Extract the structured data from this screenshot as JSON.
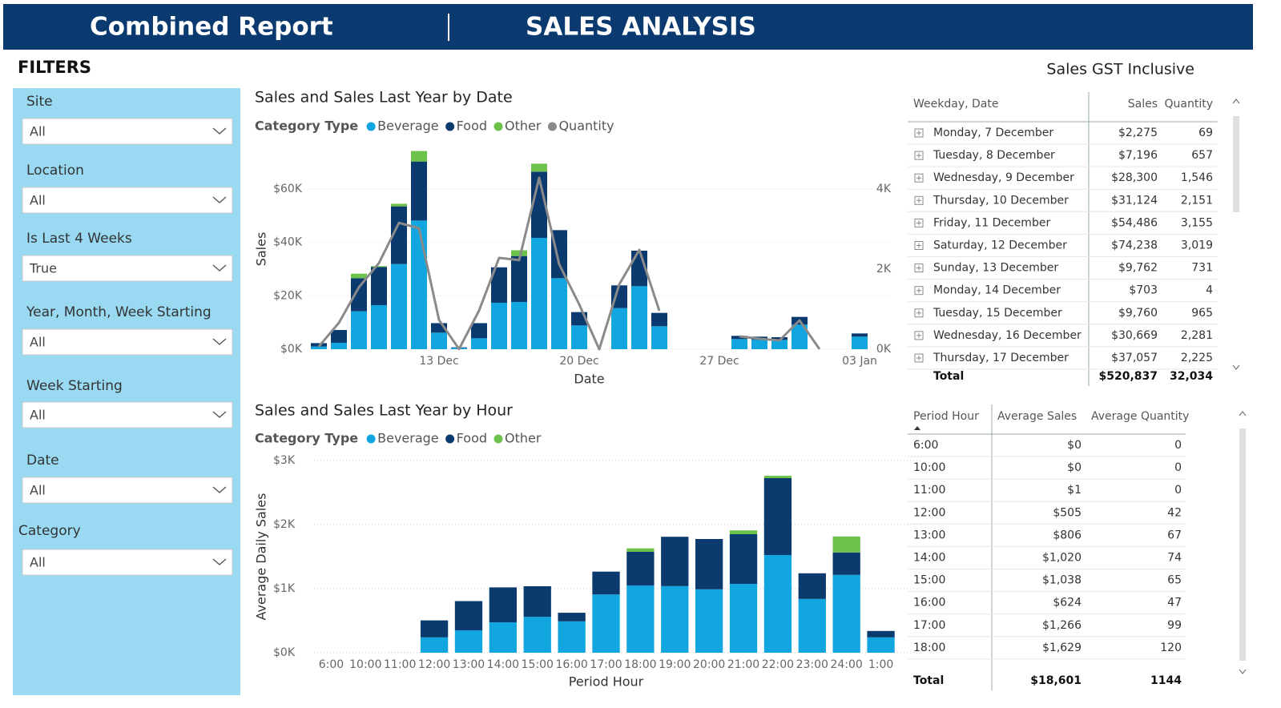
{
  "header": {
    "title": "Combined Report",
    "page": "SALES ANALYSIS"
  },
  "filters": {
    "title": "FILTERS",
    "items": [
      {
        "label": "Site",
        "value": "All"
      },
      {
        "label": "Location",
        "value": "All"
      },
      {
        "label": "Is Last 4 Weeks",
        "value": "True"
      },
      {
        "label": "Year, Month, Week Starting",
        "value": "All"
      },
      {
        "label": "Week Starting",
        "value": "All"
      },
      {
        "label": "Date",
        "value": "All"
      },
      {
        "label": "Category",
        "value": "All"
      }
    ]
  },
  "note": "Sales GST Inclusive",
  "chart_data": [
    {
      "type": "bar",
      "title": "Sales and Sales Last Year by Date",
      "legend_title": "Category Type",
      "x_label": "Date",
      "y_label": "Sales",
      "categories": [
        null,
        null,
        null,
        null,
        null,
        null,
        "13 Dec",
        null,
        null,
        null,
        null,
        null,
        null,
        "20 Dec",
        null,
        null,
        null,
        null,
        null,
        null,
        "27 Dec",
        null,
        null,
        null,
        null,
        null,
        null,
        "03 Jan"
      ],
      "series": [
        {
          "name": "Beverage",
          "color": "#12a6e0",
          "values": [
            1000,
            2400,
            14200,
            16500,
            31900,
            48200,
            6200,
            500,
            4100,
            17400,
            17700,
            41700,
            26600,
            8900,
            null,
            15400,
            23600,
            8600,
            null,
            null,
            null,
            3800,
            3500,
            3500,
            9200,
            null,
            null,
            4700
          ]
        },
        {
          "name": "Food",
          "color": "#0b3a6e",
          "values": [
            1275,
            4796,
            12400,
            14300,
            21600,
            22100,
            3562,
            203,
            5660,
            13269,
            17200,
            24800,
            18000,
            5000,
            null,
            8500,
            13300,
            5000,
            null,
            null,
            null,
            1200,
            1200,
            1000,
            2900,
            null,
            null,
            1200
          ]
        },
        {
          "name": "Other",
          "color": "#6cc24a",
          "values": [
            0,
            0,
            1700,
            324,
            986,
            3938,
            0,
            0,
            0,
            0,
            2157,
            3000,
            0,
            0,
            null,
            0,
            0,
            0,
            null,
            null,
            null,
            0,
            0,
            0,
            0,
            null,
            null,
            0
          ]
        },
        {
          "name": "Quantity",
          "color": "#8a8a8a",
          "axis": "y2",
          "values": [
            69,
            657,
            1546,
            2151,
            3155,
            3019,
            731,
            4,
            965,
            2281,
            2225,
            4280,
            2120,
            1120,
            0,
            1620,
            2480,
            960,
            null,
            null,
            null,
            320,
            260,
            220,
            720,
            0,
            null,
            360
          ]
        }
      ],
      "ylim": [
        0,
        75000
      ],
      "yticks": [
        {
          "value": 0,
          "label": "$0K"
        },
        {
          "value": 20000,
          "label": "$20K"
        },
        {
          "value": 40000,
          "label": "$40K"
        },
        {
          "value": 60000,
          "label": "$60K"
        }
      ],
      "y2lim": [
        0,
        5000
      ],
      "y2ticks": [
        {
          "value": 0,
          "label": "0K"
        },
        {
          "value": 2000,
          "label": "2K"
        },
        {
          "value": 4000,
          "label": "4K"
        }
      ],
      "grid": true
    },
    {
      "type": "bar",
      "title": "Sales and Sales Last Year by Hour",
      "legend_title": "Category Type",
      "x_label": "Period Hour",
      "y_label": "Average Daily Sales",
      "categories": [
        "6:00",
        "10:00",
        "11:00",
        "12:00",
        "13:00",
        "14:00",
        "15:00",
        "16:00",
        "17:00",
        "18:00",
        "19:00",
        "20:00",
        "21:00",
        "22:00",
        "23:00",
        "24:00",
        "1:00"
      ],
      "series": [
        {
          "name": "Beverage",
          "color": "#12a6e0",
          "values": [
            0,
            0,
            1,
            240,
            350,
            475,
            560,
            490,
            910,
            1050,
            1040,
            990,
            1075,
            1525,
            840,
            1215,
            240
          ]
        },
        {
          "name": "Food",
          "color": "#0b3a6e",
          "values": [
            0,
            0,
            0,
            265,
            456,
            545,
            478,
            134,
            356,
            525,
            770,
            785,
            775,
            1200,
            400,
            350,
            100
          ]
        },
        {
          "name": "Other",
          "color": "#6cc24a",
          "values": [
            0,
            0,
            0,
            0,
            0,
            0,
            0,
            0,
            0,
            54,
            0,
            0,
            60,
            37,
            0,
            250,
            0
          ]
        }
      ],
      "ylim": [
        0,
        3000
      ],
      "yticks": [
        {
          "value": 0,
          "label": "$0K"
        },
        {
          "value": 1000,
          "label": "$1K"
        },
        {
          "value": 2000,
          "label": "$2K"
        },
        {
          "value": 3000,
          "label": "$3K"
        }
      ],
      "grid": true
    }
  ],
  "tables": [
    {
      "columns": [
        "Weekday, Date",
        "Sales",
        "Quantity"
      ],
      "rows": [
        [
          "Monday, 7 December",
          "$2,275",
          "69"
        ],
        [
          "Tuesday, 8 December",
          "$7,196",
          "657"
        ],
        [
          "Wednesday, 9 December",
          "$28,300",
          "1,546"
        ],
        [
          "Thursday, 10 December",
          "$31,124",
          "2,151"
        ],
        [
          "Friday, 11 December",
          "$54,486",
          "3,155"
        ],
        [
          "Saturday, 12 December",
          "$74,238",
          "3,019"
        ],
        [
          "Sunday, 13 December",
          "$9,762",
          "731"
        ],
        [
          "Monday, 14 December",
          "$703",
          "4"
        ],
        [
          "Tuesday, 15 December",
          "$9,760",
          "965"
        ],
        [
          "Wednesday, 16 December",
          "$30,669",
          "2,281"
        ],
        [
          "Thursday, 17 December",
          "$37,057",
          "2,225"
        ]
      ],
      "total": [
        "Total",
        "$520,837",
        "32,034"
      ]
    },
    {
      "columns": [
        "Period Hour",
        "Average Sales",
        "Average Quantity"
      ],
      "rows": [
        [
          "6:00",
          "$0",
          "0"
        ],
        [
          "10:00",
          "$0",
          "0"
        ],
        [
          "11:00",
          "$1",
          "0"
        ],
        [
          "12:00",
          "$505",
          "42"
        ],
        [
          "13:00",
          "$806",
          "67"
        ],
        [
          "14:00",
          "$1,020",
          "74"
        ],
        [
          "15:00",
          "$1,038",
          "65"
        ],
        [
          "16:00",
          "$624",
          "47"
        ],
        [
          "17:00",
          "$1,266",
          "99"
        ],
        [
          "18:00",
          "$1,629",
          "120"
        ]
      ],
      "total": [
        "Total",
        "$18,601",
        "1144"
      ]
    }
  ]
}
